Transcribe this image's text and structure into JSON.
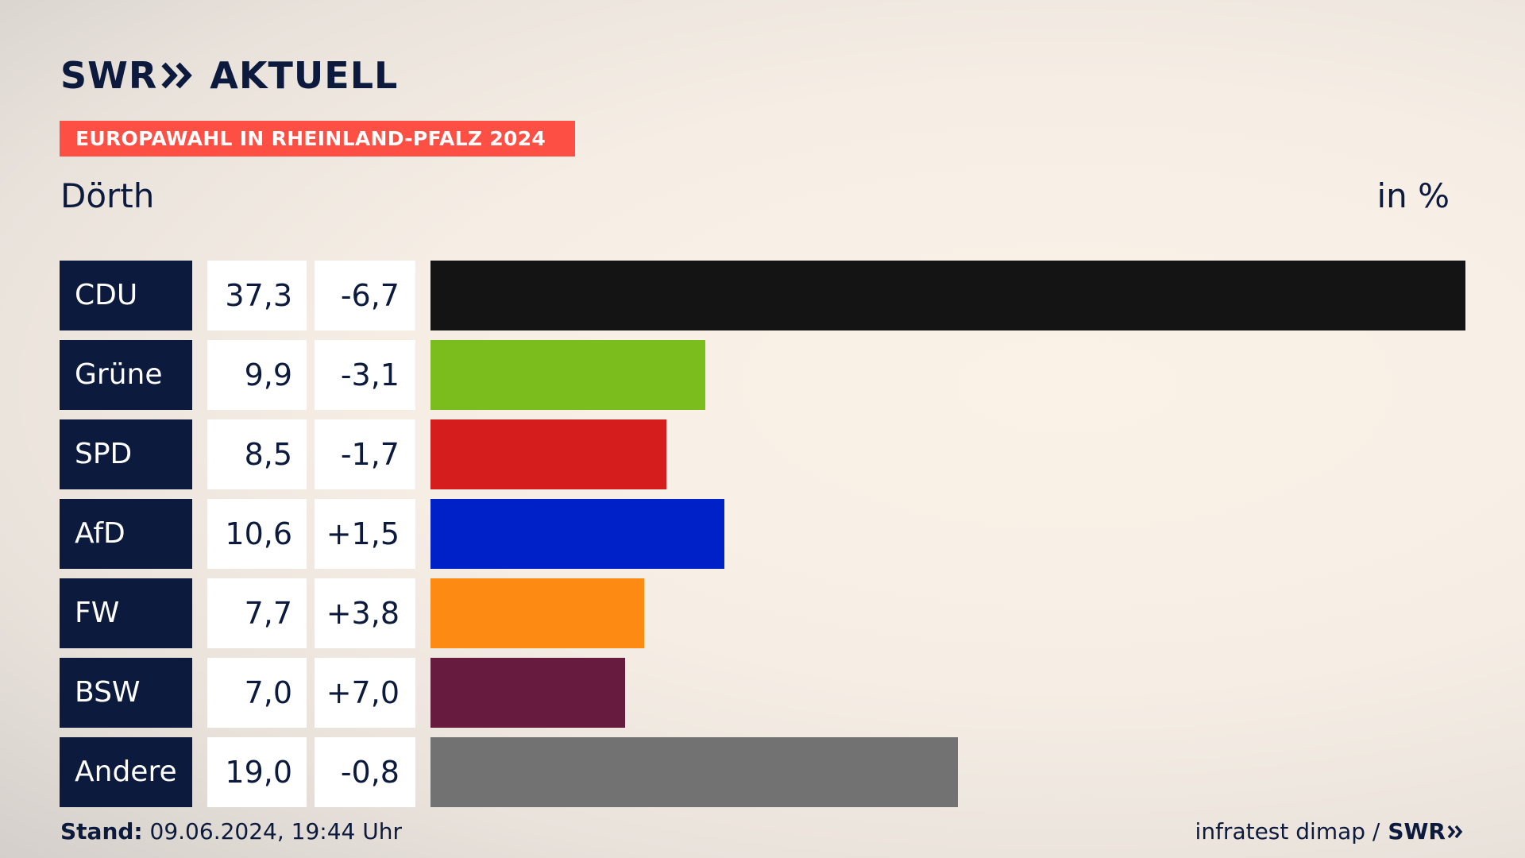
{
  "brand": {
    "swr": "SWR",
    "aktuell": "AKTUELL"
  },
  "banner": {
    "text": "EUROPAWAHL IN RHEINLAND-PFALZ 2024"
  },
  "location": "Dörth",
  "unit": "in %",
  "footer": {
    "stand_label": "Stand:",
    "stand_value": "09.06.2024, 19:44 Uhr",
    "source": "infratest dimap /",
    "source_brand": "SWR"
  },
  "colors": {
    "navy": "#0b1a3d",
    "banner": "#fe4f45"
  },
  "chart_data": {
    "type": "bar",
    "orientation": "horizontal",
    "categories": [
      "CDU",
      "Grüne",
      "SPD",
      "AfD",
      "FW",
      "BSW",
      "Andere"
    ],
    "values": [
      37.3,
      9.9,
      8.5,
      10.6,
      7.7,
      7.0,
      19.0
    ],
    "value_labels": [
      "37,3",
      "9,9",
      "8,5",
      "10,6",
      "7,7",
      "7,0",
      "19,0"
    ],
    "diff_labels": [
      "-6,7",
      "-3,1",
      "-1,7",
      "+1,5",
      "+3,8",
      "+7,0",
      "-0,8"
    ],
    "diffs": [
      -6.7,
      -3.1,
      -1.7,
      1.5,
      3.8,
      7.0,
      -0.8
    ],
    "colors": [
      "#141414",
      "#7bbd1d",
      "#d61d1d",
      "#0020c8",
      "#fd8a13",
      "#661b3f",
      "#727272"
    ],
    "xlim": [
      0,
      37.3
    ],
    "grid": false,
    "legend": "none"
  }
}
